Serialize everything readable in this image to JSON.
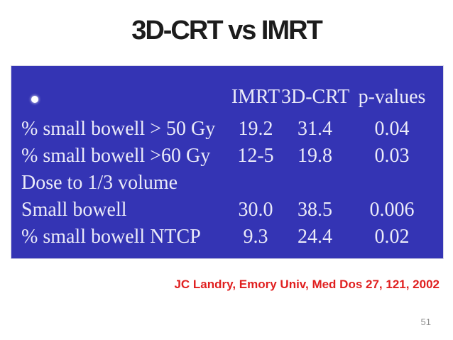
{
  "slide": {
    "title": "3D-CRT vs IMRT",
    "citation": "JC Landry, Emory Univ, Med Dos 27, 121, 2002",
    "page_number": "51"
  },
  "table": {
    "bullet_icon": "white-circle-bullet",
    "columns": [
      "IMRT",
      "3D-CRT",
      "p-values"
    ],
    "rows": [
      {
        "label": "% small bowell > 50 Gy",
        "imrt": "19.2",
        "crt": "31.4",
        "p": "0.04"
      },
      {
        "label": "% small bowell >60 Gy",
        "imrt": "12-5",
        "crt": "19.8",
        "p": "0.03"
      },
      {
        "label": "Dose to 1/3 volume",
        "imrt": "",
        "crt": "",
        "p": ""
      },
      {
        "label": "Small bowell",
        "imrt": "30.0",
        "crt": "38.5",
        "p": "0.006"
      },
      {
        "label": "% small bowell NTCP",
        "imrt": "9.3",
        "crt": "24.4",
        "p": "0.02"
      }
    ]
  },
  "colors": {
    "table_background": "#3434b4",
    "table_text": "#eaeaf8",
    "title_text": "#1c1c1c",
    "citation_red": "#e01f1f",
    "page_number_gray": "#8f8f8f"
  }
}
